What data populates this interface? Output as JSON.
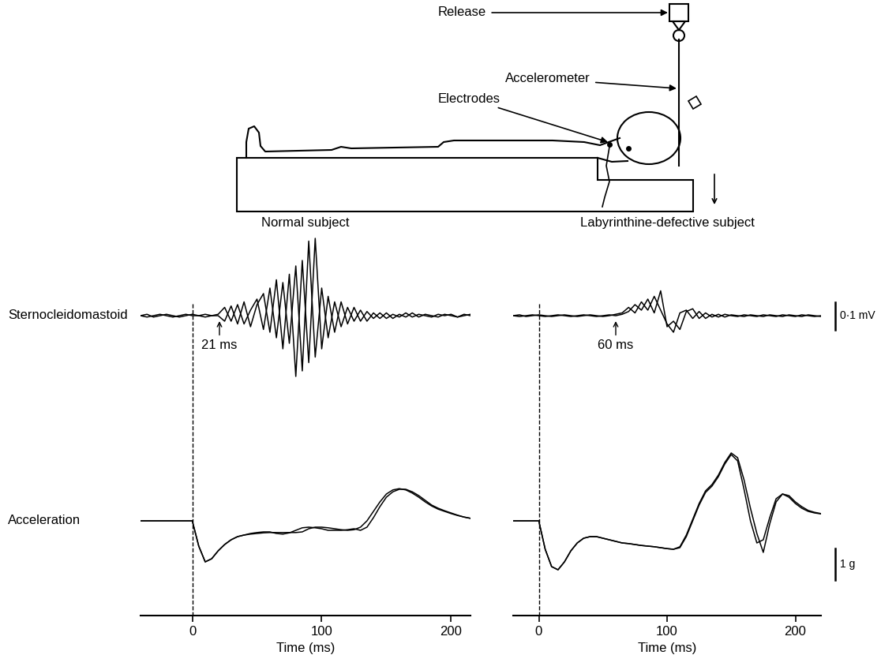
{
  "diagram": {
    "labels": [
      "Release",
      "Accelerometer",
      "Electrodes"
    ]
  },
  "row_labels": [
    "Sternocleidomastoid",
    "Acceleration"
  ],
  "scale_bars": [
    {
      "value": 0.1,
      "label": "0·1 mV"
    },
    {
      "value": 1,
      "label": "1 g"
    }
  ],
  "chart_data": [
    {
      "type": "line",
      "title": "Normal subject",
      "tick_labels": false,
      "xlim": [
        -40,
        215
      ],
      "ylim": [
        -0.3,
        0.3
      ],
      "annotations": [
        {
          "x": 21,
          "text": "21 ms"
        }
      ],
      "x": [
        -40,
        -35,
        -30,
        -25,
        -20,
        -15,
        -10,
        -5,
        0,
        5,
        10,
        15,
        20,
        25,
        30,
        35,
        40,
        45,
        50,
        55,
        60,
        65,
        70,
        75,
        80,
        85,
        90,
        95,
        100,
        105,
        110,
        115,
        120,
        125,
        130,
        135,
        140,
        145,
        150,
        155,
        160,
        165,
        170,
        175,
        180,
        185,
        190,
        195,
        200,
        205,
        210,
        215
      ],
      "series": [
        {
          "color": "#000000",
          "values": [
            0,
            0.005,
            -0.005,
            0,
            0.005,
            0,
            -0.005,
            0,
            0.005,
            0,
            -0.005,
            0,
            0.005,
            0.03,
            -0.02,
            0.04,
            -0.03,
            0.02,
            0.06,
            -0.05,
            0.1,
            -0.08,
            0.12,
            -0.1,
            0.18,
            -0.2,
            0.27,
            -0.15,
            0.1,
            -0.08,
            0.05,
            -0.04,
            0.03,
            -0.02,
            0.02,
            -0.02,
            0.01,
            -0.01,
            0.01,
            -0.01,
            0.005,
            -0.005,
            0.01,
            -0.005,
            0.005,
            0,
            -0.005,
            0.005,
            0,
            -0.005,
            0.005,
            0
          ]
        },
        {
          "color": "#000000",
          "values": [
            0,
            -0.005,
            0,
            0.005,
            0,
            -0.005,
            0,
            0.005,
            0,
            0,
            0.005,
            0,
            0,
            -0.02,
            0.035,
            -0.03,
            0.05,
            -0.04,
            0.04,
            0.08,
            -0.06,
            0.13,
            -0.12,
            0.15,
            -0.22,
            0.2,
            -0.17,
            0.28,
            -0.12,
            0.07,
            -0.06,
            0.05,
            -0.03,
            0.03,
            -0.02,
            0.015,
            -0.01,
            0.01,
            -0.01,
            0.005,
            -0.005,
            0.01,
            -0.005,
            0.005,
            0,
            -0.005,
            0.005,
            0,
            0.005,
            -0.005,
            0,
            0.005
          ]
        }
      ]
    },
    {
      "type": "line",
      "tick_labels": "x",
      "xlabel": "Time (ms)",
      "xlim": [
        -40,
        215
      ],
      "xticks": [
        0,
        100,
        200
      ],
      "ylim": [
        -3,
        3
      ],
      "vlines": [
        0
      ],
      "x": [
        -40,
        -35,
        -30,
        -25,
        -20,
        -15,
        -10,
        -5,
        0,
        5,
        10,
        15,
        20,
        25,
        30,
        35,
        40,
        45,
        50,
        55,
        60,
        65,
        70,
        75,
        80,
        85,
        90,
        95,
        100,
        105,
        110,
        115,
        120,
        125,
        130,
        135,
        140,
        145,
        150,
        155,
        160,
        165,
        170,
        175,
        180,
        185,
        190,
        195,
        200,
        205,
        210,
        215
      ],
      "series": [
        {
          "color": "#000000",
          "values": [
            0,
            0,
            0,
            0,
            0,
            0,
            0,
            0,
            0,
            -0.8,
            -1.3,
            -1.2,
            -0.95,
            -0.75,
            -0.6,
            -0.5,
            -0.45,
            -0.4,
            -0.37,
            -0.35,
            -0.35,
            -0.4,
            -0.42,
            -0.38,
            -0.3,
            -0.22,
            -0.2,
            -0.22,
            -0.25,
            -0.3,
            -0.3,
            -0.3,
            -0.28,
            -0.25,
            -0.3,
            -0.2,
            0.1,
            0.45,
            0.75,
            0.92,
            1.0,
            1.0,
            0.92,
            0.8,
            0.65,
            0.5,
            0.4,
            0.32,
            0.25,
            0.18,
            0.12,
            0.08
          ]
        },
        {
          "color": "#000000",
          "values": [
            0,
            0,
            0,
            0,
            0,
            0,
            0,
            0,
            0,
            -0.8,
            -1.3,
            -1.2,
            -0.95,
            -0.75,
            -0.6,
            -0.5,
            -0.45,
            -0.42,
            -0.4,
            -0.38,
            -0.37,
            -0.37,
            -0.37,
            -0.37,
            -0.37,
            -0.35,
            -0.25,
            -0.2,
            -0.2,
            -0.22,
            -0.25,
            -0.28,
            -0.3,
            -0.28,
            -0.2,
            0.0,
            0.3,
            0.6,
            0.85,
            0.98,
            1.02,
            0.98,
            0.88,
            0.75,
            0.6,
            0.47,
            0.37,
            0.3,
            0.23,
            0.17,
            0.12,
            0.08
          ]
        }
      ]
    },
    {
      "type": "line",
      "title": "Labyrinthine-defective subject",
      "tick_labels": false,
      "xlim": [
        -20,
        220
      ],
      "ylim": [
        -0.3,
        0.3
      ],
      "annotations": [
        {
          "x": 60,
          "text": "60 ms"
        }
      ],
      "x": [
        -20,
        -15,
        -10,
        -5,
        0,
        5,
        10,
        15,
        20,
        25,
        30,
        35,
        40,
        45,
        50,
        55,
        60,
        65,
        70,
        75,
        80,
        85,
        90,
        95,
        100,
        105,
        110,
        115,
        120,
        125,
        130,
        135,
        140,
        145,
        150,
        155,
        160,
        165,
        170,
        175,
        180,
        185,
        190,
        195,
        200,
        205,
        210,
        215,
        220
      ],
      "series": [
        {
          "color": "#000000",
          "values": [
            0,
            0.003,
            -0.003,
            0,
            0.003,
            0,
            -0.003,
            0,
            0.003,
            0,
            -0.003,
            0,
            0.003,
            0,
            -0.003,
            0,
            0.005,
            0.01,
            0.03,
            0.01,
            0.05,
            0.02,
            0.07,
            0.02,
            -0.03,
            -0.06,
            0.01,
            0.02,
            -0.01,
            0.015,
            -0.01,
            0.005,
            -0.005,
            0.005,
            0,
            -0.003,
            0.003,
            0,
            -0.003,
            0.003,
            0,
            -0.003,
            0.003,
            0,
            -0.003,
            0.003,
            0,
            -0.003,
            0
          ]
        },
        {
          "color": "#000000",
          "values": [
            0,
            -0.003,
            0,
            0.003,
            0,
            -0.003,
            0,
            0.003,
            0,
            -0.003,
            0,
            0.003,
            0,
            -0.003,
            0,
            0.003,
            0,
            0.005,
            0.015,
            0.04,
            0.02,
            0.06,
            0.01,
            0.09,
            -0.04,
            -0.02,
            -0.05,
            0.015,
            0.025,
            -0.01,
            0.01,
            -0.005,
            0.005,
            -0.005,
            0.003,
            0,
            -0.003,
            0.003,
            0,
            -0.003,
            0.003,
            0,
            -0.003,
            0.003,
            0,
            -0.003,
            0.003,
            0,
            -0.003
          ]
        }
      ]
    },
    {
      "type": "line",
      "tick_labels": "x",
      "xlabel": "Time (ms)",
      "xlim": [
        -20,
        220
      ],
      "xticks": [
        0,
        100,
        200
      ],
      "ylim": [
        -3,
        3
      ],
      "vlines": [
        0
      ],
      "x": [
        -20,
        -15,
        -10,
        -5,
        0,
        5,
        10,
        15,
        20,
        25,
        30,
        35,
        40,
        45,
        50,
        55,
        60,
        65,
        70,
        75,
        80,
        85,
        90,
        95,
        100,
        105,
        110,
        115,
        120,
        125,
        130,
        135,
        140,
        145,
        150,
        155,
        160,
        165,
        170,
        175,
        180,
        185,
        190,
        195,
        200,
        205,
        210,
        215,
        220
      ],
      "series": [
        {
          "color": "#000000",
          "values": [
            0,
            0,
            0,
            0,
            0,
            -0.9,
            -1.45,
            -1.55,
            -1.3,
            -0.95,
            -0.7,
            -0.55,
            -0.5,
            -0.5,
            -0.55,
            -0.6,
            -0.65,
            -0.7,
            -0.72,
            -0.75,
            -0.78,
            -0.8,
            -0.82,
            -0.85,
            -0.88,
            -0.9,
            -0.85,
            -0.5,
            0.0,
            0.5,
            0.9,
            1.1,
            1.4,
            1.8,
            2.1,
            1.9,
            1.0,
            0.0,
            -0.7,
            -0.6,
            0.1,
            0.7,
            0.85,
            0.75,
            0.55,
            0.4,
            0.3,
            0.25,
            0.22
          ]
        },
        {
          "color": "#000000",
          "values": [
            0,
            0,
            0,
            0,
            0,
            -0.9,
            -1.45,
            -1.55,
            -1.3,
            -0.95,
            -0.7,
            -0.55,
            -0.5,
            -0.5,
            -0.55,
            -0.6,
            -0.65,
            -0.7,
            -0.72,
            -0.75,
            -0.78,
            -0.8,
            -0.82,
            -0.85,
            -0.88,
            -0.9,
            -0.82,
            -0.45,
            0.05,
            0.55,
            0.95,
            1.15,
            1.45,
            1.85,
            2.15,
            2.0,
            1.3,
            0.4,
            -0.4,
            -1.0,
            -0.1,
            0.6,
            0.85,
            0.8,
            0.6,
            0.45,
            0.33,
            0.27,
            0.23
          ]
        }
      ]
    }
  ]
}
